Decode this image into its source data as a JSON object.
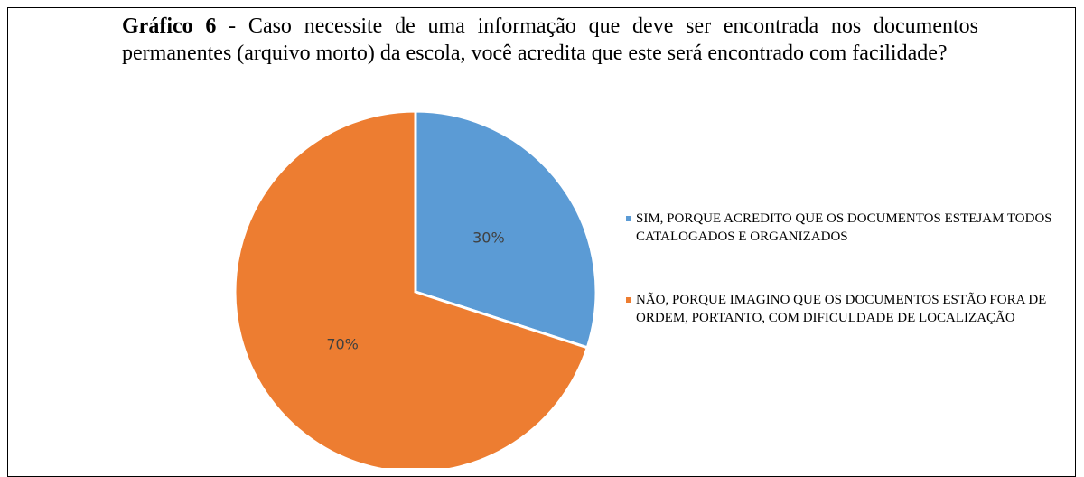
{
  "chart_data": {
    "type": "pie",
    "title_label": "Gráfico 6",
    "title": " - Caso necessite de uma informação que deve ser encontrada nos documentos permanentes (arquivo morto) da escola, você acredita que este será encontrado com facilidade?",
    "categories": [
      "SIM, PORQUE ACREDITO QUE OS DOCUMENTOS ESTEJAM TODOS CATALOGADOS E ORGANIZADOS",
      "NÃO, PORQUE IMAGINO QUE OS DOCUMENTOS ESTÃO FORA DE ORDEM, PORTANTO, COM DIFICULDADE DE LOCALIZAÇÃO"
    ],
    "values": [
      30,
      70
    ],
    "value_labels": [
      "30%",
      "70%"
    ],
    "colors": [
      "#5b9bd5",
      "#ed7d31"
    ],
    "legend": "right"
  }
}
